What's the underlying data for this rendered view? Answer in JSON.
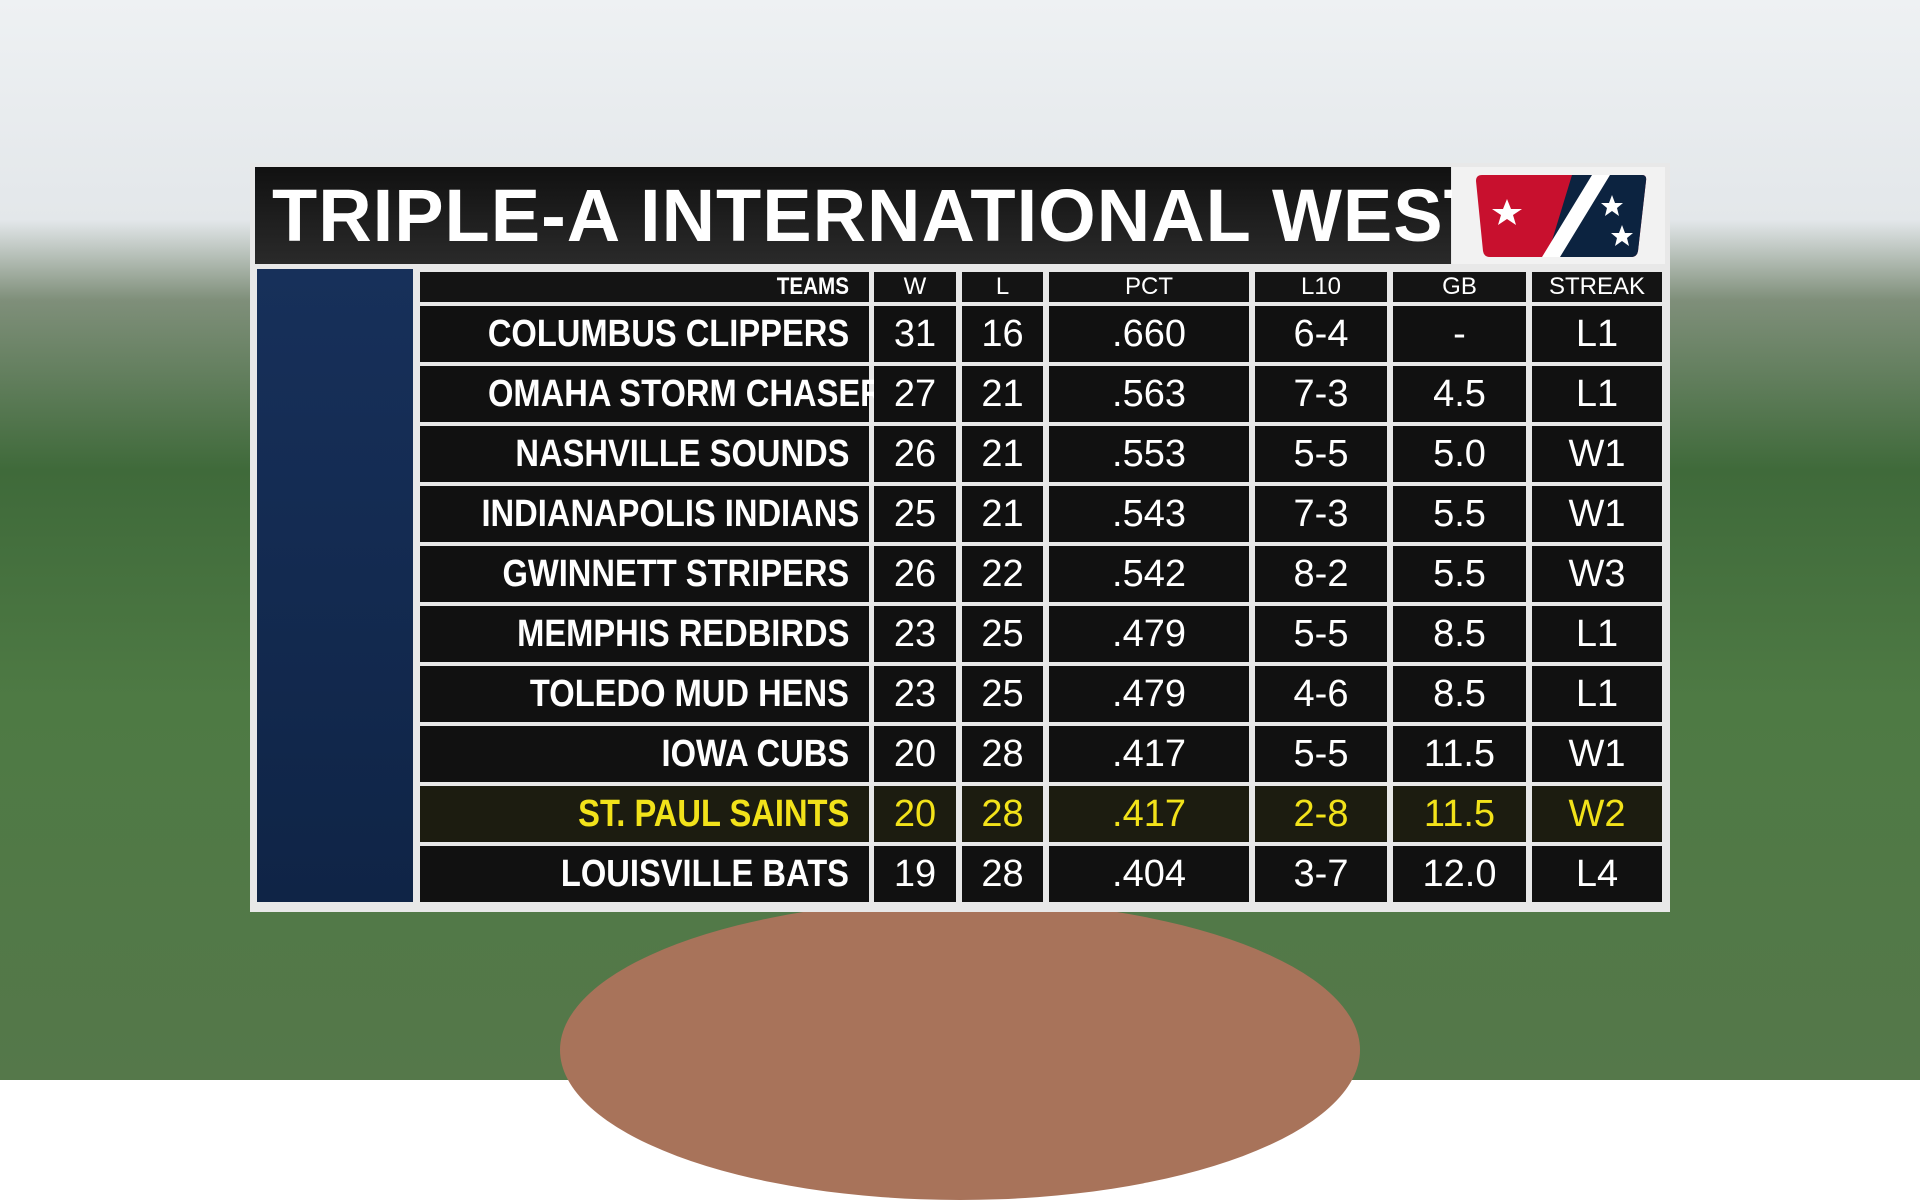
{
  "header": {
    "title": "TRIPLE-A INTERNATIONAL WEST"
  },
  "table": {
    "columns": [
      "TEAMS",
      "W",
      "L",
      "PCT",
      "L10",
      "GB",
      "STREAK"
    ],
    "rows": [
      [
        "COLUMBUS CLIPPERS",
        "31",
        "16",
        ".660",
        "6-4",
        "-",
        "L1"
      ],
      [
        "OMAHA STORM CHASERS",
        "27",
        "21",
        ".563",
        "7-3",
        "4.5",
        "L1"
      ],
      [
        "NASHVILLE SOUNDS",
        "26",
        "21",
        ".553",
        "5-5",
        "5.0",
        "W1"
      ],
      [
        "INDIANAPOLIS INDIANS",
        "25",
        "21",
        ".543",
        "7-3",
        "5.5",
        "W1"
      ],
      [
        "GWINNETT STRIPERS",
        "26",
        "22",
        ".542",
        "8-2",
        "5.5",
        "W3"
      ],
      [
        "MEMPHIS REDBIRDS",
        "23",
        "25",
        ".479",
        "5-5",
        "8.5",
        "L1"
      ],
      [
        "TOLEDO MUD HENS",
        "23",
        "25",
        ".479",
        "4-6",
        "8.5",
        "L1"
      ],
      [
        "IOWA CUBS",
        "20",
        "28",
        ".417",
        "5-5",
        "11.5",
        "W1"
      ],
      [
        "ST. PAUL SAINTS",
        "20",
        "28",
        ".417",
        "2-8",
        "11.5",
        "W2"
      ],
      [
        "LOUISVILLE BATS",
        "19",
        "28",
        ".404",
        "3-7",
        "12.0",
        "L4"
      ]
    ]
  }
}
